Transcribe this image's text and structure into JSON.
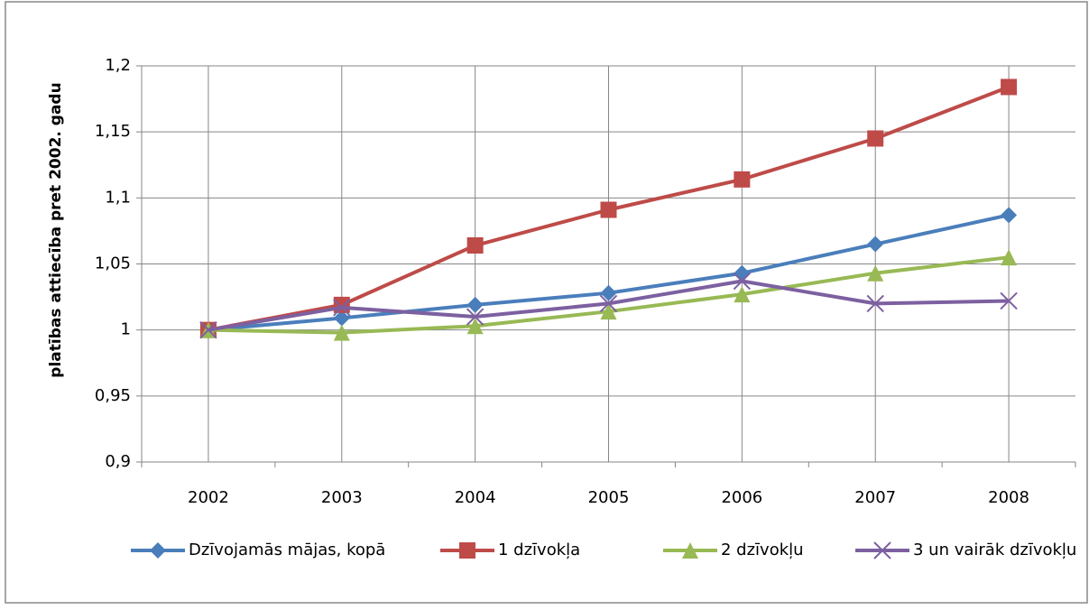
{
  "chart_data": {
    "type": "line",
    "y_label": "platības attiecība pret 2002. gadu",
    "categories": [
      "2002",
      "2003",
      "2004",
      "2005",
      "2006",
      "2007",
      "2008"
    ],
    "series": [
      {
        "name": "Dzīvojamās mājas, kopā",
        "color": "#4a7ebb",
        "marker": "diamond",
        "values": [
          1.0,
          1.009,
          1.019,
          1.028,
          1.043,
          1.065,
          1.087
        ]
      },
      {
        "name": "1 dzīvokļa",
        "color": "#be4b48",
        "marker": "square",
        "values": [
          1.0,
          1.019,
          1.064,
          1.091,
          1.114,
          1.145,
          1.184
        ]
      },
      {
        "name": "2 dzīvokļu",
        "color": "#98b954",
        "marker": "triangle",
        "values": [
          1.0,
          0.998,
          1.003,
          1.014,
          1.027,
          1.043,
          1.055
        ]
      },
      {
        "name": "3 un vairāk dzīvokļu",
        "color": "#7d60a0",
        "marker": "x",
        "values": [
          1.0,
          1.017,
          1.01,
          1.02,
          1.037,
          1.02,
          1.022
        ]
      }
    ],
    "ylim": [
      0.9,
      1.2
    ],
    "yticks": [
      {
        "value": 0.9,
        "label": "0,9"
      },
      {
        "value": 0.95,
        "label": "0,95"
      },
      1,
      {
        "value": 1.05,
        "label": "1,05"
      },
      {
        "value": 1.1,
        "label": "1,1"
      },
      {
        "value": 1.15,
        "label": "1,15"
      },
      {
        "value": 1.2,
        "label": "1,2"
      }
    ],
    "grid": true,
    "legend": "bottom"
  }
}
